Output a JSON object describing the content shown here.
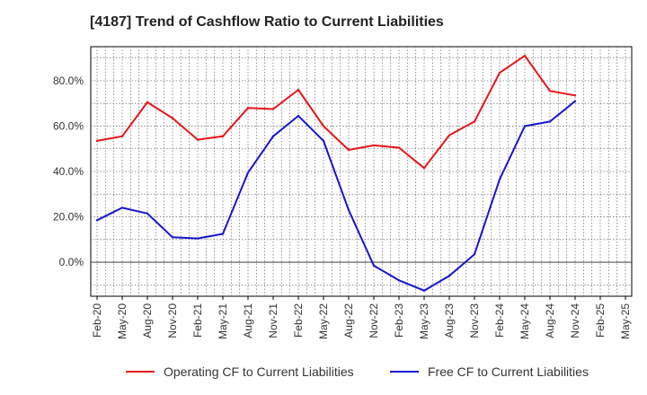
{
  "chart_data": {
    "type": "line",
    "title": "[4187]  Trend of Cashflow Ratio to Current Liabilities",
    "x": [
      "Feb-20",
      "May-20",
      "Aug-20",
      "Nov-20",
      "Feb-21",
      "May-21",
      "Aug-21",
      "Nov-21",
      "Feb-22",
      "May-22",
      "Aug-22",
      "Nov-22",
      "Feb-23",
      "May-23",
      "Aug-23",
      "Nov-23",
      "Feb-24",
      "May-24",
      "Aug-24",
      "Nov-24",
      "Feb-25",
      "May-25"
    ],
    "ylim": [
      -15,
      95
    ],
    "yticks": [
      0,
      20,
      40,
      60,
      80
    ],
    "ytick_labels": [
      "0.0%",
      "20.0%",
      "40.0%",
      "60.0%",
      "80.0%"
    ],
    "grid": true,
    "legend": "bottom",
    "series": [
      {
        "name": "Operating CF to Current Liabilities",
        "color": "#e8141b",
        "values": [
          53.5,
          55.5,
          70.5,
          63.5,
          54.0,
          55.5,
          68.0,
          67.5,
          76.0,
          60.0,
          49.5,
          51.5,
          50.5,
          41.5,
          56.0,
          62.0,
          83.5,
          91.0,
          75.5,
          73.5,
          null,
          null
        ]
      },
      {
        "name": "Free CF to Current Liabilities",
        "color": "#1515d0",
        "values": [
          18.5,
          24.0,
          21.5,
          11.0,
          10.5,
          12.5,
          39.5,
          55.5,
          64.5,
          53.5,
          23.0,
          -1.5,
          -8.0,
          -12.5,
          -6.0,
          3.5,
          36.5,
          60.0,
          62.0,
          71.0,
          null,
          null
        ]
      }
    ]
  }
}
